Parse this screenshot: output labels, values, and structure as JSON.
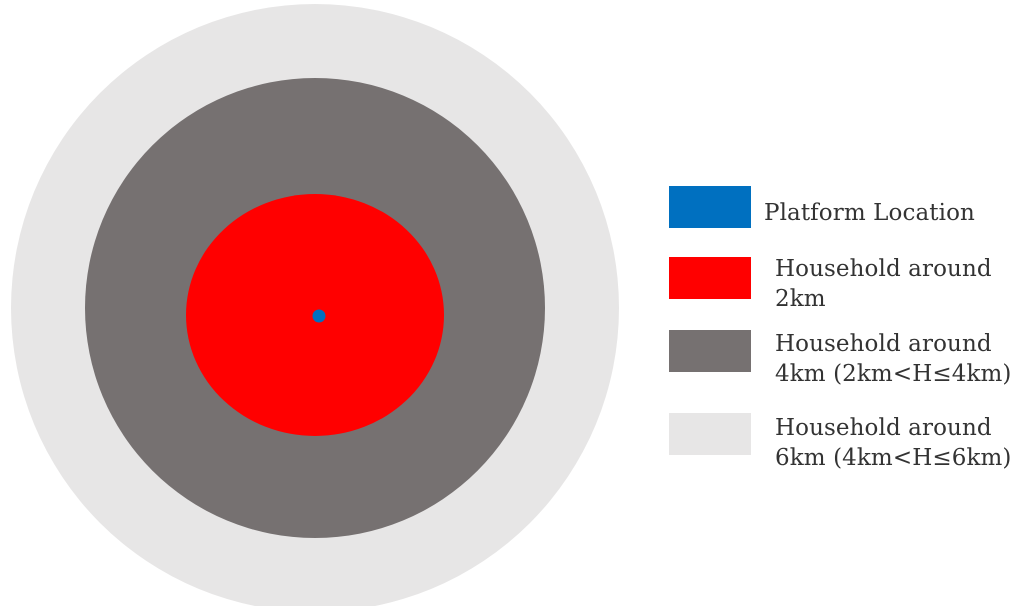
{
  "colors": {
    "platform": "#0070c0",
    "zone_2km": "#ff0000",
    "zone_4km": "#767171",
    "zone_6km": "#e7e6e6"
  },
  "legend": {
    "platform_label": "Platform Location",
    "zone_2km_line1": "Household around",
    "zone_2km_line2": "2km",
    "zone_4km_line1": "Household around",
    "zone_4km_line2": "4km (2km<H≤4km)",
    "zone_6km_line1": "Household around",
    "zone_6km_line2": "6km (4km<H≤6km)"
  }
}
